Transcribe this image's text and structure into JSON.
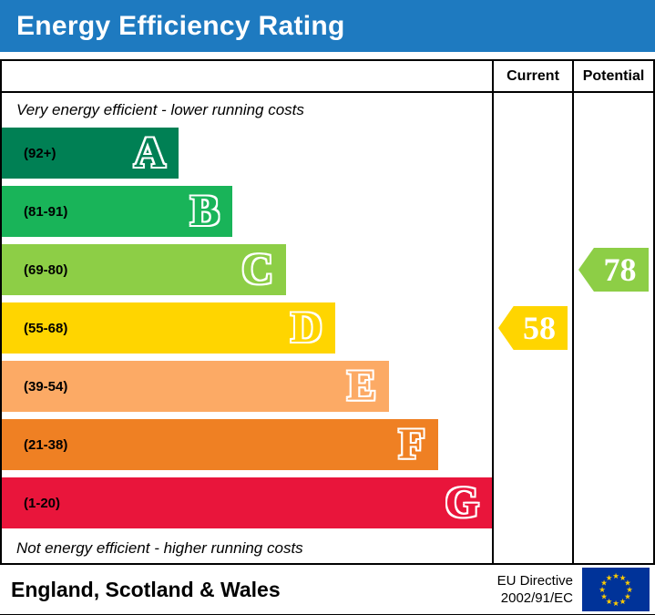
{
  "header": {
    "title": "Energy Efficiency Rating",
    "bg_color": "#1e7ac0",
    "text_color": "#ffffff"
  },
  "columns": {
    "current": "Current",
    "potential": "Potential"
  },
  "notes": {
    "top": "Very energy efficient - lower running costs",
    "bottom": "Not energy efficient - higher running costs"
  },
  "bands": [
    {
      "letter": "A",
      "range": "(92+)",
      "color": "#008054",
      "width_pct": 36
    },
    {
      "letter": "B",
      "range": "(81-91)",
      "color": "#19b459",
      "width_pct": 47
    },
    {
      "letter": "C",
      "range": "(69-80)",
      "color": "#8dce46",
      "width_pct": 58
    },
    {
      "letter": "D",
      "range": "(55-68)",
      "color": "#ffd500",
      "width_pct": 68
    },
    {
      "letter": "E",
      "range": "(39-54)",
      "color": "#fcaa65",
      "width_pct": 79
    },
    {
      "letter": "F",
      "range": "(21-38)",
      "color": "#ef8023",
      "width_pct": 89
    },
    {
      "letter": "G",
      "range": "(1-20)",
      "color": "#e9153b",
      "width_pct": 100
    }
  ],
  "current": {
    "value": "58",
    "band": "D",
    "color": "#ffd500"
  },
  "potential": {
    "value": "78",
    "band": "C",
    "color": "#8dce46"
  },
  "footer": {
    "region": "England, Scotland & Wales",
    "directive_line1": "EU Directive",
    "directive_line2": "2002/91/EC",
    "flag": {
      "bg": "#003399",
      "star": "#ffcc00"
    }
  },
  "chart_data": {
    "type": "bar",
    "title": "Energy Efficiency Rating",
    "categories": [
      "A (92+)",
      "B (81-91)",
      "C (69-80)",
      "D (55-68)",
      "E (39-54)",
      "F (21-38)",
      "G (1-20)"
    ],
    "values": [
      36,
      47,
      58,
      68,
      79,
      89,
      100
    ],
    "value_note": "bar lengths as percent of rating scale column width",
    "band_colors": [
      "#008054",
      "#19b459",
      "#8dce46",
      "#ffd500",
      "#fcaa65",
      "#ef8023",
      "#e9153b"
    ],
    "current_rating": 58,
    "current_band": "D",
    "potential_rating": 78,
    "potential_band": "C",
    "columns": [
      "Current",
      "Potential"
    ],
    "grid": false,
    "legend_position": "none"
  }
}
